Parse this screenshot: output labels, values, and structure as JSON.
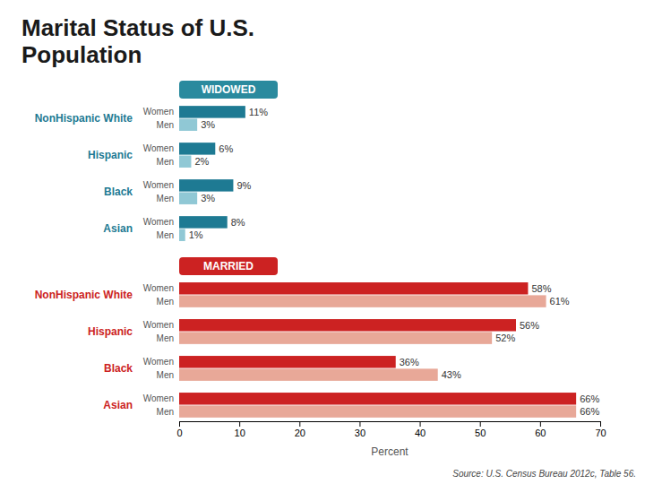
{
  "chart_data": {
    "type": "bar",
    "orientation": "horizontal",
    "title": "Marital Status of U.S.\nPopulation",
    "x_label": "Percent",
    "source": "Source: U.S. Census Bureau 2012c, Table 56.",
    "xlim": [
      0,
      70
    ],
    "xticks": [
      0,
      10,
      20,
      30,
      40,
      50,
      60,
      70
    ],
    "data_labels": true,
    "sections": [
      {
        "name": "WIDOWED",
        "color": "#2a8a9e",
        "categories": [
          "NonHispanic White",
          "Hispanic",
          "Black",
          "Asian"
        ],
        "series": [
          {
            "name": "Women",
            "color": "#1e7a93",
            "values": [
              11,
              6,
              9,
              8
            ],
            "value_labels": [
              "11%",
              "6%",
              "9%",
              "8%"
            ]
          },
          {
            "name": "Men",
            "color": "#90c8d5",
            "values": [
              3,
              2,
              3,
              1
            ],
            "value_labels": [
              "3%",
              "2%",
              "3%",
              "1%"
            ]
          }
        ]
      },
      {
        "name": "MARRIED",
        "color": "#cc2222",
        "categories": [
          "NonHispanic White",
          "Hispanic",
          "Black",
          "Asian"
        ],
        "series": [
          {
            "name": "Women",
            "color": "#cc2222",
            "values": [
              58,
              56,
              36,
              66
            ],
            "value_labels": [
              "58%",
              "56%",
              "36%",
              "66%"
            ]
          },
          {
            "name": "Men",
            "color": "#e8a898",
            "values": [
              61,
              52,
              43,
              66
            ],
            "value_labels": [
              "61%",
              "52%",
              "43%",
              "66%"
            ]
          }
        ]
      }
    ]
  }
}
